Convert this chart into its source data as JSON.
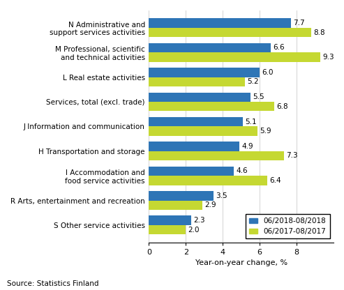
{
  "categories": [
    "S Other service activities",
    "R Arts, entertainment and recreation",
    "I Accommodation and\nfood service activities",
    "H Transportation and storage",
    "J Information and communication",
    "Services, total (excl. trade)",
    "L Real estate activities",
    "M Professional, scientific\nand technical activities",
    "N Administrative and\nsupport services activities"
  ],
  "values_2018": [
    2.3,
    3.5,
    4.6,
    4.9,
    5.1,
    5.5,
    6.0,
    6.6,
    7.7
  ],
  "values_2017": [
    2.0,
    2.9,
    6.4,
    7.3,
    5.9,
    6.8,
    5.2,
    9.3,
    8.8
  ],
  "color_2018": "#2e75b6",
  "color_2017": "#c5d832",
  "xlabel": "Year-on-year change, %",
  "legend_2018": "06/2018-08/2018",
  "legend_2017": "06/2017-08/2017",
  "source": "Source: Statistics Finland",
  "xlim": [
    0,
    10
  ],
  "xticks": [
    0,
    2,
    4,
    6,
    8
  ],
  "bar_height": 0.38
}
